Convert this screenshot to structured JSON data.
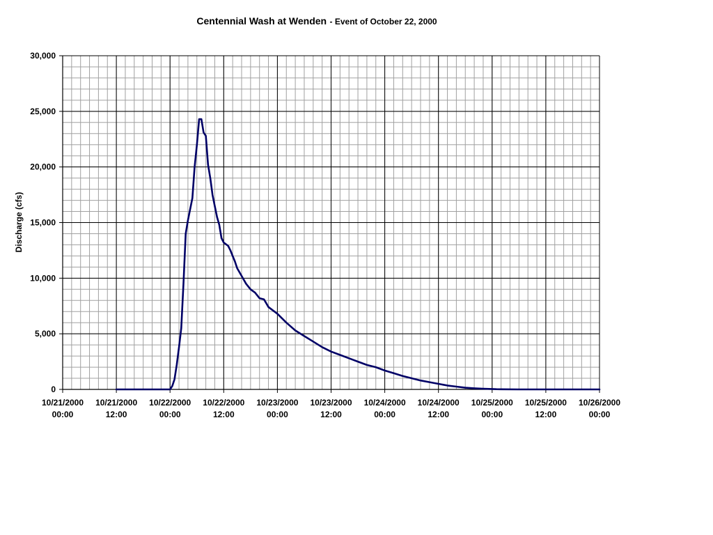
{
  "chart_data": {
    "type": "line",
    "title": "Centennial Wash at Wenden",
    "subtitle": "- Event of October 22, 2000",
    "xlabel": "",
    "ylabel": "Discharge (cfs)",
    "ylim": [
      0,
      30000
    ],
    "y_ticks": [
      "0",
      "5,000",
      "10,000",
      "15,000",
      "20,000",
      "25,000",
      "30,000"
    ],
    "xlim": [
      "2000-10-21 00:00",
      "2000-10-26 00:00"
    ],
    "x_ticks": [
      {
        "date": "10/21/2000",
        "time": "00:00"
      },
      {
        "date": "10/21/2000",
        "time": "12:00"
      },
      {
        "date": "10/22/2000",
        "time": "00:00"
      },
      {
        "date": "10/22/2000",
        "time": "12:00"
      },
      {
        "date": "10/23/2000",
        "time": "00:00"
      },
      {
        "date": "10/23/2000",
        "time": "12:00"
      },
      {
        "date": "10/24/2000",
        "time": "00:00"
      },
      {
        "date": "10/24/2000",
        "time": "12:00"
      },
      {
        "date": "10/25/2000",
        "time": "00:00"
      },
      {
        "date": "10/25/2000",
        "time": "12:00"
      },
      {
        "date": "10/26/2000",
        "time": "00:00"
      }
    ],
    "grid": true,
    "line_color": "#000066",
    "series": [
      {
        "x": [
          "2000-10-21 12:00",
          "2000-10-22 00:00",
          "2000-10-22 00:30",
          "2000-10-22 01:00",
          "2000-10-22 01:30",
          "2000-10-22 02:00",
          "2000-10-22 02:30",
          "2000-10-22 03:00",
          "2000-10-22 03:30",
          "2000-10-22 04:00",
          "2000-10-22 04:30",
          "2000-10-22 05:00",
          "2000-10-22 05:30",
          "2000-10-22 06:00",
          "2000-10-22 06:30",
          "2000-10-22 07:00",
          "2000-10-22 07:30",
          "2000-10-22 08:00",
          "2000-10-22 08:30",
          "2000-10-22 09:00",
          "2000-10-22 09:30",
          "2000-10-22 10:00",
          "2000-10-22 10:30",
          "2000-10-22 11:00",
          "2000-10-22 11:30",
          "2000-10-22 12:00",
          "2000-10-22 13:00",
          "2000-10-22 13:30",
          "2000-10-22 14:00",
          "2000-10-22 14:30",
          "2000-10-22 15:00",
          "2000-10-22 16:00",
          "2000-10-22 17:00",
          "2000-10-22 18:00",
          "2000-10-22 19:00",
          "2000-10-22 20:00",
          "2000-10-22 21:00",
          "2000-10-22 22:00",
          "2000-10-23 00:00",
          "2000-10-23 02:00",
          "2000-10-23 04:00",
          "2000-10-23 06:00",
          "2000-10-23 08:00",
          "2000-10-23 10:00",
          "2000-10-23 12:00",
          "2000-10-23 14:00",
          "2000-10-23 16:00",
          "2000-10-23 18:00",
          "2000-10-23 20:00",
          "2000-10-23 22:00",
          "2000-10-24 00:00",
          "2000-10-24 02:00",
          "2000-10-24 04:00",
          "2000-10-24 06:00",
          "2000-10-24 08:00",
          "2000-10-24 10:00",
          "2000-10-24 12:00",
          "2000-10-24 14:00",
          "2000-10-24 16:00",
          "2000-10-24 18:00",
          "2000-10-24 20:00",
          "2000-10-24 22:00",
          "2000-10-25 00:00",
          "2000-10-25 01:00",
          "2000-10-25 02:00",
          "2000-10-25 06:00",
          "2000-10-25 12:00",
          "2000-10-26 00:00"
        ],
        "y": [
          0,
          0,
          300,
          900,
          2200,
          3800,
          5500,
          9500,
          14000,
          15200,
          16200,
          17200,
          20000,
          22000,
          24300,
          24300,
          23100,
          22800,
          20200,
          19000,
          17500,
          16500,
          15500,
          14800,
          13600,
          13200,
          12900,
          12500,
          12000,
          11500,
          10900,
          10200,
          9500,
          9000,
          8700,
          8200,
          8100,
          7400,
          6800,
          6000,
          5300,
          4800,
          4300,
          3800,
          3400,
          3100,
          2800,
          2500,
          2200,
          2000,
          1700,
          1450,
          1200,
          1000,
          800,
          650,
          500,
          350,
          250,
          150,
          100,
          60,
          40,
          20,
          10,
          0,
          0,
          0
        ]
      }
    ]
  }
}
